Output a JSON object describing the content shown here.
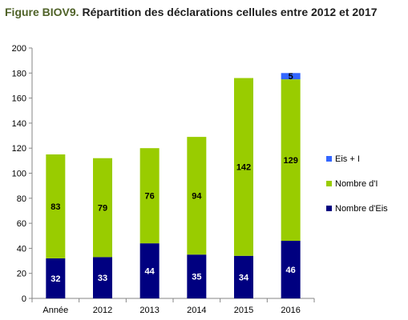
{
  "title": {
    "prefix": "Figure BIOV9.",
    "main": "Répartition des déclarations cellules entre 2012 et 2017"
  },
  "chart_data": {
    "type": "bar",
    "stacked": true,
    "categories": [
      "Année",
      "2012",
      "2013",
      "2014",
      "2015",
      "2016"
    ],
    "series": [
      {
        "name": "Nombre d'Eis",
        "color": "#000080",
        "label_color": "#ffffff",
        "values": [
          32,
          33,
          44,
          35,
          34,
          46
        ]
      },
      {
        "name": "Nombre d'I",
        "color": "#99cc00",
        "label_color": "#000000",
        "values": [
          83,
          79,
          76,
          94,
          142,
          129
        ]
      },
      {
        "name": "Eis + I",
        "color": "#3366ff",
        "label_color": "#000000",
        "values": [
          0,
          0,
          0,
          0,
          0,
          5
        ]
      }
    ],
    "ylim": [
      0,
      200
    ],
    "yticks": [
      0,
      20,
      40,
      60,
      80,
      100,
      120,
      140,
      160,
      180,
      200
    ],
    "grid": false,
    "legend": "right"
  }
}
